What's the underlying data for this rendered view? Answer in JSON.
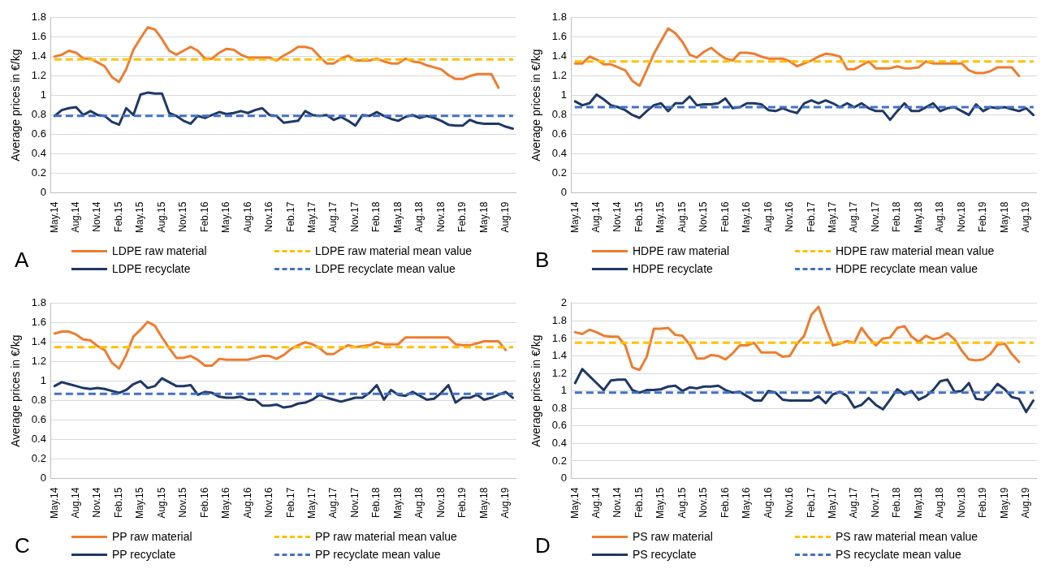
{
  "chart_data": [
    {
      "type": "line",
      "ylabel": "Average prices in €/kg",
      "annotations": [
        "A"
      ],
      "grid": "y",
      "legend": "bottom",
      "ylim": [
        0,
        1.8
      ],
      "yticks": [
        0,
        0.2,
        0.4,
        0.6,
        0.8,
        1,
        1.2,
        1.4,
        1.6,
        1.8
      ],
      "categories": [
        "May.14",
        null,
        null,
        "Aug.14",
        null,
        null,
        "Nov.14",
        null,
        null,
        "Feb.15",
        null,
        null,
        "May.15",
        null,
        null,
        "Aug.15",
        null,
        null,
        "Nov.15",
        null,
        null,
        "Feb.16",
        null,
        null,
        "May.16",
        null,
        null,
        "Aug.16",
        null,
        null,
        "Nov.16",
        null,
        null,
        "Feb.17",
        null,
        null,
        "May.17",
        null,
        null,
        "Aug.17",
        null,
        null,
        "Nov.17",
        null,
        null,
        "Feb.18",
        null,
        null,
        "May.18",
        null,
        null,
        "Aug.18",
        null,
        null,
        "Nov.18",
        null,
        null,
        "Feb.19",
        null,
        null,
        "May.18",
        null,
        null,
        "Aug.19",
        null
      ],
      "series": [
        {
          "name": "LDPE raw material",
          "color": "#ed7d31",
          "values": [
            1.4,
            1.42,
            1.46,
            1.44,
            1.38,
            1.38,
            1.34,
            1.3,
            1.19,
            1.14,
            1.27,
            1.47,
            1.59,
            1.7,
            1.68,
            1.58,
            1.46,
            1.42,
            1.46,
            1.5,
            1.46,
            1.38,
            1.38,
            1.44,
            1.48,
            1.47,
            1.42,
            1.39,
            1.39,
            1.39,
            1.39,
            1.36,
            1.41,
            1.45,
            1.5,
            1.5,
            1.48,
            1.4,
            1.33,
            1.33,
            1.38,
            1.41,
            1.36,
            1.36,
            1.36,
            1.38,
            1.35,
            1.33,
            1.33,
            1.38,
            1.35,
            1.34,
            1.31,
            1.29,
            1.27,
            1.21,
            1.17,
            1.17,
            1.2,
            1.22,
            1.22,
            1.22,
            1.08,
            null,
            null
          ]
        },
        {
          "name": "LDPE recyclate",
          "color": "#203864",
          "values": [
            0.79,
            0.85,
            0.87,
            0.88,
            0.8,
            0.84,
            0.8,
            0.79,
            0.73,
            0.7,
            0.87,
            0.8,
            1.01,
            1.03,
            1.02,
            1.02,
            0.82,
            0.79,
            0.74,
            0.71,
            0.79,
            0.77,
            0.8,
            0.83,
            0.81,
            0.82,
            0.84,
            0.82,
            0.85,
            0.87,
            0.8,
            0.79,
            0.72,
            0.73,
            0.74,
            0.84,
            0.8,
            0.79,
            0.8,
            0.75,
            0.78,
            0.74,
            0.69,
            0.8,
            0.79,
            0.83,
            0.79,
            0.76,
            0.74,
            0.78,
            0.8,
            0.77,
            0.79,
            0.77,
            0.74,
            0.7,
            0.69,
            0.69,
            0.75,
            0.72,
            0.71,
            0.71,
            0.71,
            0.68,
            0.66
          ]
        }
      ],
      "ref_lines": [
        {
          "axis": "y",
          "value": 1.37,
          "label": "LDPE raw material mean value",
          "color": "#ffc000",
          "line_style": "dashed"
        },
        {
          "axis": "y",
          "value": 0.79,
          "label": "LDPE recyclate mean value",
          "color": "#4472c4",
          "line_style": "dashed"
        }
      ]
    },
    {
      "type": "line",
      "ylabel": "Average prices in €/kg",
      "annotations": [
        "B"
      ],
      "grid": "y",
      "legend": "bottom",
      "ylim": [
        0,
        1.8
      ],
      "yticks": [
        0,
        0.2,
        0.4,
        0.6,
        0.8,
        1,
        1.2,
        1.4,
        1.6,
        1.8
      ],
      "categories": [
        "May.14",
        null,
        null,
        "Aug.14",
        null,
        null,
        "Nov.14",
        null,
        null,
        "Feb.15",
        null,
        null,
        "May.15",
        null,
        null,
        "Aug.15",
        null,
        null,
        "Nov.15",
        null,
        null,
        "Feb.16",
        null,
        null,
        "May.16",
        null,
        null,
        "Aug.16",
        null,
        null,
        "Nov.16",
        null,
        null,
        "Feb.17",
        null,
        null,
        "May.17",
        null,
        null,
        "Aug.17",
        null,
        null,
        "Nov.17",
        null,
        null,
        "Feb.18",
        null,
        null,
        "May.18",
        null,
        null,
        "Aug.18",
        null,
        null,
        "Nov.18",
        null,
        null,
        "Feb.19",
        null,
        null,
        "May.18",
        null,
        null,
        "Aug.19",
        null
      ],
      "series": [
        {
          "name": "HDPE raw material",
          "color": "#ed7d31",
          "values": [
            1.33,
            1.33,
            1.4,
            1.37,
            1.32,
            1.32,
            1.29,
            1.26,
            1.15,
            1.1,
            1.26,
            1.43,
            1.56,
            1.69,
            1.64,
            1.55,
            1.42,
            1.39,
            1.45,
            1.49,
            1.43,
            1.38,
            1.36,
            1.44,
            1.44,
            1.43,
            1.4,
            1.38,
            1.38,
            1.38,
            1.35,
            1.3,
            1.33,
            1.36,
            1.4,
            1.43,
            1.42,
            1.4,
            1.27,
            1.27,
            1.31,
            1.35,
            1.28,
            1.28,
            1.28,
            1.3,
            1.28,
            1.28,
            1.29,
            1.35,
            1.33,
            1.33,
            1.33,
            1.33,
            1.33,
            1.26,
            1.23,
            1.23,
            1.25,
            1.29,
            1.29,
            1.29,
            1.2,
            null,
            null
          ]
        },
        {
          "name": "HDPE recyclate",
          "color": "#203864",
          "values": [
            0.94,
            0.9,
            0.92,
            1.01,
            0.96,
            0.9,
            0.88,
            0.85,
            0.8,
            0.77,
            0.84,
            0.9,
            0.92,
            0.84,
            0.92,
            0.92,
            0.99,
            0.9,
            0.91,
            0.91,
            0.92,
            0.97,
            0.87,
            0.88,
            0.92,
            0.92,
            0.91,
            0.85,
            0.84,
            0.87,
            0.84,
            0.82,
            0.92,
            0.95,
            0.92,
            0.95,
            0.92,
            0.88,
            0.92,
            0.88,
            0.92,
            0.87,
            0.84,
            0.84,
            0.75,
            0.84,
            0.92,
            0.84,
            0.84,
            0.88,
            0.92,
            0.84,
            0.87,
            0.88,
            0.84,
            0.8,
            0.91,
            0.84,
            0.88,
            0.87,
            0.88,
            0.86,
            0.84,
            0.87,
            0.8
          ]
        }
      ],
      "ref_lines": [
        {
          "axis": "y",
          "value": 1.35,
          "label": "HDPE raw material mean value",
          "color": "#ffc000",
          "line_style": "dashed"
        },
        {
          "axis": "y",
          "value": 0.88,
          "label": "HDPE recyclate mean value",
          "color": "#4472c4",
          "line_style": "dashed"
        }
      ]
    },
    {
      "type": "line",
      "ylabel": "Average prices in €/kg",
      "annotations": [
        "C"
      ],
      "grid": "y",
      "legend": "bottom",
      "ylim": [
        0,
        1.8
      ],
      "yticks": [
        0,
        0.2,
        0.4,
        0.6,
        0.8,
        1,
        1.2,
        1.4,
        1.6,
        1.8
      ],
      "categories": [
        "May.14",
        null,
        null,
        "Aug.14",
        null,
        null,
        "Nov.14",
        null,
        null,
        "Feb.15",
        null,
        null,
        "May.15",
        null,
        null,
        "Aug.15",
        null,
        null,
        "Nov.15",
        null,
        null,
        "Feb.16",
        null,
        null,
        "May.16",
        null,
        null,
        "Aug.16",
        null,
        null,
        "Nov.16",
        null,
        null,
        "Feb.17",
        null,
        null,
        "May.17",
        null,
        null,
        "Aug.17",
        null,
        null,
        "Nov.17",
        null,
        null,
        "Feb.18",
        null,
        null,
        "May.18",
        null,
        null,
        "Aug.18",
        null,
        null,
        "Nov.18",
        null,
        null,
        "Feb.19",
        null,
        null,
        "May.18",
        null,
        null,
        "Aug.19",
        null
      ],
      "series": [
        {
          "name": "PP raw material",
          "color": "#ed7d31",
          "values": [
            1.49,
            1.51,
            1.51,
            1.48,
            1.43,
            1.42,
            1.36,
            1.32,
            1.19,
            1.13,
            1.27,
            1.46,
            1.53,
            1.61,
            1.57,
            1.45,
            1.34,
            1.24,
            1.24,
            1.26,
            1.22,
            1.16,
            1.16,
            1.23,
            1.22,
            1.22,
            1.22,
            1.22,
            1.24,
            1.26,
            1.26,
            1.23,
            1.27,
            1.33,
            1.37,
            1.4,
            1.38,
            1.34,
            1.28,
            1.28,
            1.33,
            1.37,
            1.35,
            1.36,
            1.37,
            1.4,
            1.38,
            1.38,
            1.38,
            1.45,
            1.45,
            1.45,
            1.45,
            1.45,
            1.45,
            1.45,
            1.38,
            1.37,
            1.37,
            1.39,
            1.41,
            1.41,
            1.41,
            1.32,
            null
          ]
        },
        {
          "name": "PP recyclate",
          "color": "#203864",
          "values": [
            0.95,
            0.99,
            0.97,
            0.95,
            0.93,
            0.92,
            0.93,
            0.92,
            0.9,
            0.88,
            0.91,
            0.97,
            1.0,
            0.93,
            0.95,
            1.03,
            0.99,
            0.95,
            0.95,
            0.96,
            0.86,
            0.89,
            0.88,
            0.84,
            0.83,
            0.83,
            0.84,
            0.81,
            0.81,
            0.75,
            0.75,
            0.76,
            0.73,
            0.74,
            0.77,
            0.78,
            0.81,
            0.86,
            0.83,
            0.81,
            0.79,
            0.81,
            0.83,
            0.83,
            0.88,
            0.96,
            0.81,
            0.91,
            0.86,
            0.85,
            0.89,
            0.85,
            0.81,
            0.82,
            0.88,
            0.96,
            0.78,
            0.83,
            0.83,
            0.86,
            0.81,
            0.83,
            0.86,
            0.89,
            0.83
          ]
        }
      ],
      "ref_lines": [
        {
          "axis": "y",
          "value": 1.35,
          "label": "PP raw material mean value",
          "color": "#ffc000",
          "line_style": "dashed"
        },
        {
          "axis": "y",
          "value": 0.87,
          "label": "PP recyclate mean value",
          "color": "#4472c4",
          "line_style": "dashed"
        }
      ]
    },
    {
      "type": "line",
      "ylabel": "Average prices in €/kg",
      "annotations": [
        "D"
      ],
      "grid": "y",
      "legend": "bottom",
      "ylim": [
        0,
        2
      ],
      "yticks": [
        0,
        0.2,
        0.4,
        0.6,
        0.8,
        1,
        1.2,
        1.4,
        1.6,
        1.8,
        2
      ],
      "categories": [
        "May.14",
        null,
        null,
        "Aug.14",
        null,
        null,
        "Nov.14",
        null,
        null,
        "Feb.15",
        null,
        null,
        "May.15",
        null,
        null,
        "Aug.15",
        null,
        null,
        "Nov.15",
        null,
        null,
        "Feb.16",
        null,
        null,
        "May.16",
        null,
        null,
        "Aug.16",
        null,
        null,
        "Nov.16",
        null,
        null,
        "Feb.17",
        null,
        null,
        "May.17",
        null,
        null,
        "Aug.17",
        null,
        null,
        "Nov.17",
        null,
        null,
        "Feb.18",
        null,
        null,
        "May.18",
        null,
        null,
        "Aug.18",
        null,
        null,
        "Nov.18",
        null,
        null,
        "Feb.19",
        null,
        null,
        "May.19",
        null,
        null,
        "Aug.19",
        null
      ],
      "series": [
        {
          "name": "PS raw material",
          "color": "#ed7d31",
          "values": [
            1.67,
            1.65,
            1.7,
            1.67,
            1.63,
            1.62,
            1.62,
            1.52,
            1.27,
            1.24,
            1.39,
            1.71,
            1.71,
            1.72,
            1.64,
            1.63,
            1.53,
            1.37,
            1.37,
            1.41,
            1.4,
            1.36,
            1.43,
            1.52,
            1.52,
            1.55,
            1.44,
            1.44,
            1.44,
            1.39,
            1.4,
            1.54,
            1.63,
            1.87,
            1.96,
            1.73,
            1.52,
            1.54,
            1.57,
            1.55,
            1.72,
            1.61,
            1.52,
            1.6,
            1.61,
            1.72,
            1.74,
            1.62,
            1.56,
            1.63,
            1.59,
            1.61,
            1.66,
            1.59,
            1.46,
            1.36,
            1.35,
            1.36,
            1.42,
            1.53,
            1.54,
            1.42,
            1.33,
            null,
            null
          ]
        },
        {
          "name": "PS recyclate",
          "color": "#203864",
          "values": [
            1.09,
            1.25,
            1.17,
            1.09,
            1.01,
            1.12,
            1.13,
            1.13,
            1.01,
            0.98,
            1.01,
            1.01,
            1.02,
            1.05,
            1.06,
            1.0,
            1.04,
            1.03,
            1.05,
            1.05,
            1.06,
            1.01,
            0.98,
            0.99,
            0.94,
            0.89,
            0.89,
            1.0,
            0.98,
            0.9,
            0.89,
            0.89,
            0.89,
            0.89,
            0.94,
            0.86,
            0.96,
            0.99,
            0.94,
            0.81,
            0.84,
            0.92,
            0.84,
            0.79,
            0.9,
            1.02,
            0.96,
            1.0,
            0.9,
            0.94,
            1.01,
            1.11,
            1.13,
            0.99,
            1.0,
            1.09,
            0.91,
            0.9,
            0.98,
            1.08,
            1.02,
            0.93,
            0.91,
            0.76,
            0.89
          ]
        }
      ],
      "ref_lines": [
        {
          "axis": "y",
          "value": 1.55,
          "label": "PS raw material mean value",
          "color": "#ffc000",
          "line_style": "dashed"
        },
        {
          "axis": "y",
          "value": 0.98,
          "label": "PS recyclate mean value",
          "color": "#4472c4",
          "line_style": "dashed"
        }
      ]
    }
  ]
}
